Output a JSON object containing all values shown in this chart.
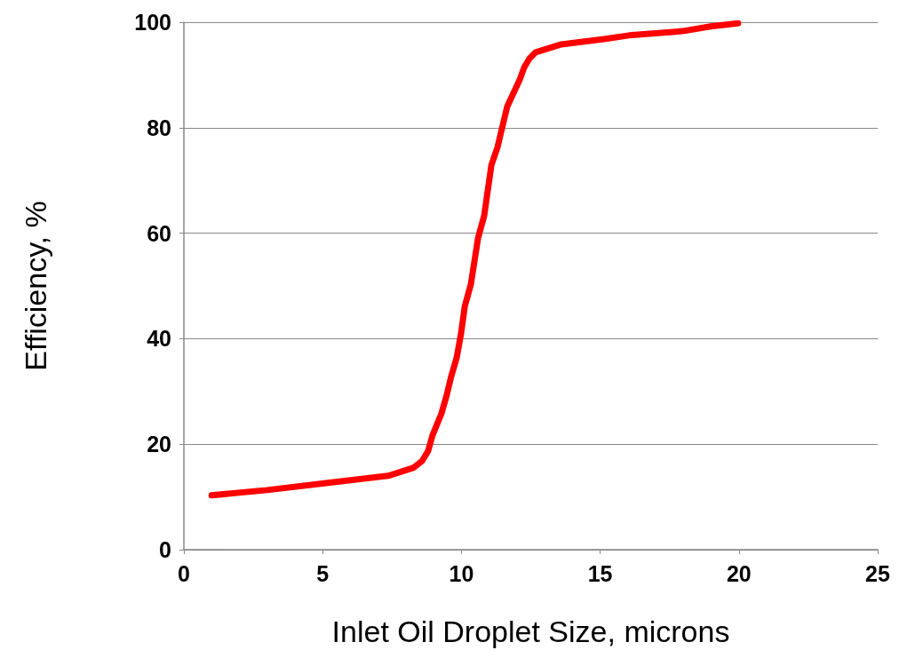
{
  "chart_data": {
    "type": "line",
    "xlabel": "Inlet Oil Droplet Size, microns",
    "ylabel": "Efficiency, %",
    "series": [
      {
        "color": "#ff0000",
        "x": [
          1,
          3,
          5.06,
          7.36,
          8.26,
          8.58,
          8.8,
          8.96,
          9.28,
          9.47,
          9.63,
          9.83,
          9.99,
          10.12,
          10.34,
          10.6,
          10.82,
          11.08,
          11.3,
          11.65,
          12.1,
          12.26,
          12.45,
          12.68,
          13.6,
          15.14,
          16.04,
          17.96,
          18.98,
          19.97
        ],
        "values": [
          10.3,
          11.3,
          12.6,
          14,
          15.5,
          16.8,
          18.7,
          21.7,
          25.8,
          29.3,
          32.8,
          36.4,
          41.1,
          46.1,
          50.3,
          59.1,
          63.3,
          72.9,
          76.3,
          84,
          89.1,
          91.4,
          93.1,
          94.3,
          95.8,
          96.8,
          97.5,
          98.3,
          99.2,
          99.8
        ]
      }
    ],
    "xlim": [
      0,
      25
    ],
    "xticks": [
      0,
      5,
      10,
      15,
      20,
      25
    ],
    "ylim": [
      0,
      100
    ],
    "yticks": [
      0,
      20,
      40,
      60,
      80,
      100
    ],
    "grid": "y",
    "marker": "none",
    "line_style": "solid"
  }
}
